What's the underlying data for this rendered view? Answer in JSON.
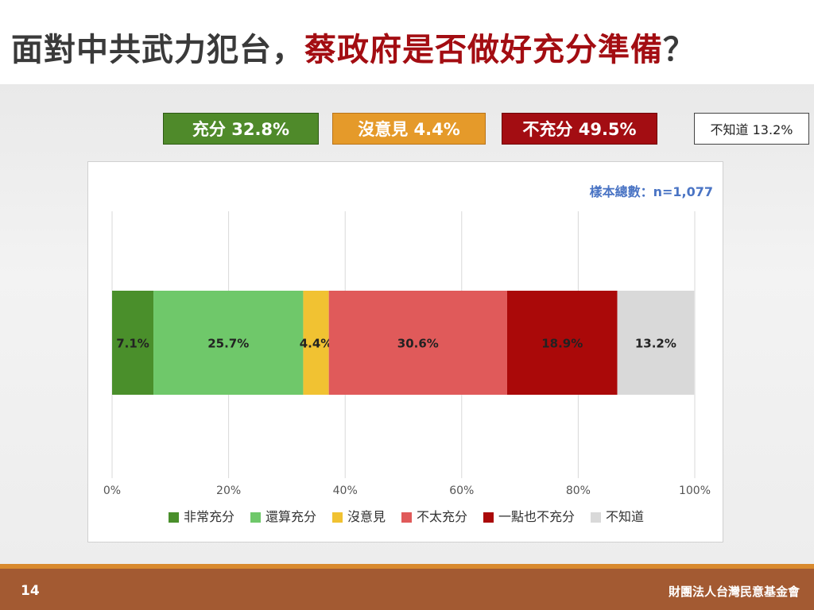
{
  "title": {
    "prefix": "面對中共武力犯台，",
    "highlight": "蔡政府是否做好充分準備",
    "suffix": "？"
  },
  "summary": [
    {
      "label": "充分 32.8%",
      "color": "#4f8a2a"
    },
    {
      "label": "沒意見 4.4%",
      "color": "#e59a2a"
    },
    {
      "label": "不充分 49.5%",
      "color": "#a30d12"
    },
    {
      "label": "不知道 13.2%",
      "color": "#ffffff"
    }
  ],
  "sample_note": "樣本總數：n=1,077",
  "chart_data": {
    "type": "bar",
    "orientation": "horizontal-stacked",
    "xlim": [
      0,
      100
    ],
    "x_ticks": [
      "0%",
      "20%",
      "40%",
      "60%",
      "80%",
      "100%"
    ],
    "grid": true,
    "legend_position": "bottom",
    "series": [
      {
        "name": "非常充分",
        "value": 7.1,
        "label": "7.1%",
        "color": "#4a8f2b"
      },
      {
        "name": "還算充分",
        "value": 25.7,
        "label": "25.7%",
        "color": "#6fc86a"
      },
      {
        "name": "沒意見",
        "value": 4.4,
        "label": "4.4%",
        "color": "#f1c232"
      },
      {
        "name": "不太充分",
        "value": 30.6,
        "label": "30.6%",
        "color": "#e05a5a"
      },
      {
        "name": "一點也不充分",
        "value": 18.9,
        "label": "18.9%",
        "color": "#aa0909"
      },
      {
        "name": "不知道",
        "value": 13.2,
        "label": "13.2%",
        "color": "#d9d9d9"
      }
    ]
  },
  "footer": {
    "page_number": "14",
    "organization": "財團法人台灣民意基金會"
  }
}
